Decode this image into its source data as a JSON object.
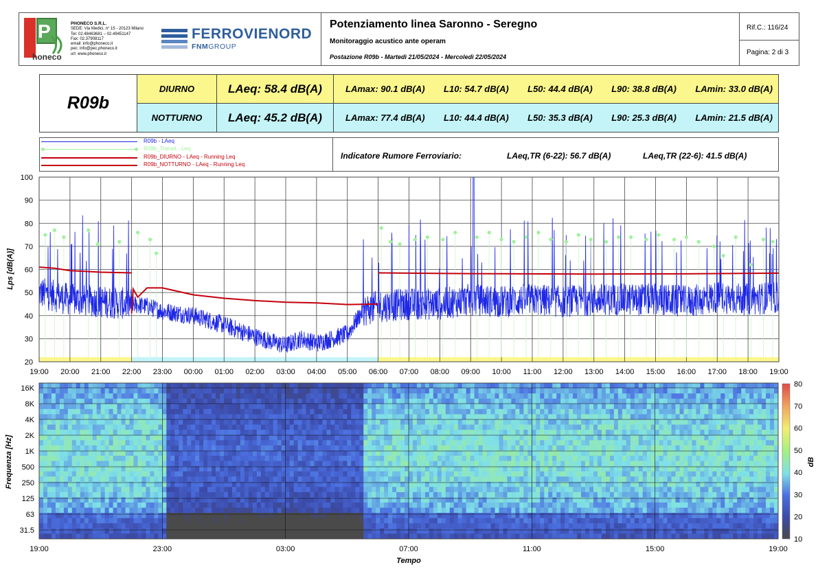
{
  "header": {
    "company": {
      "name": "PHONECO S.R.L.",
      "lines": [
        "SEDE: Via Medici, n° 15 - 20123 Milano",
        "Tel: 02.48463681 – 02.49451147",
        "Fax: 02.37908117",
        "email: info@phoneco.it",
        "pec: info@pec.phoneco.it",
        "url: www.phoneco.it"
      ],
      "logo_text": "honeco",
      "logo_letter": "P"
    },
    "ferrovienord": {
      "brand": "FERROVIENORD",
      "group_prefix": "FNM",
      "group_suffix": "GROUP"
    },
    "title": "Potenziamento linea Saronno - Seregno",
    "subtitle": "Monitoraggio acustico ante operam",
    "period": "Postazione R09b - Martedì 21/05/2024 - Mercoledì 22/05/2024",
    "ref": "Rif.C.: 116/24",
    "page": "Pagina: 2 di 3"
  },
  "summary": {
    "station": "R09b",
    "rows": [
      {
        "period": "DIURNO",
        "laeq": "LAeq: 58.4 dB(A)",
        "lamax": "LAmax: 90.1 dB(A)",
        "l10": "L10: 54.7 dB(A)",
        "l50": "L50: 44.4 dB(A)",
        "l90": "L90: 38.8 dB(A)",
        "lamin": "LAmin: 33.0 dB(A)",
        "color": "#fbf78c"
      },
      {
        "period": "NOTTURNO",
        "laeq": "LAeq: 45.2 dB(A)",
        "lamax": "LAmax: 77.4 dB(A)",
        "l10": "L10: 44.4 dB(A)",
        "l50": "L50: 35.3 dB(A)",
        "l90": "L90: 25.3 dB(A)",
        "lamin": "LAmin: 21.5 dB(A)",
        "color": "#c4f4f7"
      }
    ]
  },
  "legend": [
    {
      "label": "R09b - LAeq",
      "color": "#1d27e6"
    },
    {
      "label": "R09b_Transit - Leq",
      "color": "#9ff29a"
    },
    {
      "label": "R09b_DIURNO - LAeq - Running Leq",
      "color": "#c4000c"
    },
    {
      "label": "R09b_NOTTURNO - LAeq - Running Leq",
      "color": "#c4000c"
    }
  ],
  "indicator": {
    "label": "Indicatore Rumore Ferroviario:",
    "day": "LAeq,TR (6-22): 56.7 dB(A)",
    "night": "LAeq,TR (22-6): 41.5 dB(A)"
  },
  "chart_data": [
    {
      "type": "line",
      "ylabel": "Lps [dB(A)]",
      "ylim": [
        20,
        100
      ],
      "yticks": [
        "20",
        "30",
        "40",
        "50",
        "60",
        "70",
        "80",
        "90",
        "100"
      ],
      "xticks": [
        "19:00",
        "20:00",
        "21:00",
        "22:00",
        "23:00",
        "00:00",
        "01:00",
        "02:00",
        "03:00",
        "04:00",
        "05:00",
        "06:00",
        "07:00",
        "08:00",
        "09:00",
        "10:00",
        "11:00",
        "12:00",
        "13:00",
        "14:00",
        "15:00",
        "16:00",
        "17:00",
        "18:00",
        "19:00"
      ],
      "grid": true,
      "period_bands": [
        {
          "name": "DIURNO",
          "from_h": 0,
          "to_h": 3,
          "color": "#fbf78c"
        },
        {
          "name": "NOTTURNO",
          "from_h": 3,
          "to_h": 11,
          "color": "#c4f4f7"
        },
        {
          "name": "DIURNO",
          "from_h": 11,
          "to_h": 24,
          "color": "#fbf78c"
        }
      ],
      "laeq_baseline": [
        [
          0,
          50
        ],
        [
          1,
          47
        ],
        [
          2,
          46
        ],
        [
          3,
          45
        ],
        [
          3.5,
          44
        ],
        [
          4,
          42
        ],
        [
          5,
          40
        ],
        [
          6,
          36
        ],
        [
          7,
          31
        ],
        [
          7.7,
          28
        ],
        [
          8,
          27
        ],
        [
          8.5,
          30
        ],
        [
          9,
          28
        ],
        [
          10,
          32
        ],
        [
          10.5,
          42
        ],
        [
          11,
          44
        ],
        [
          12,
          45
        ],
        [
          13,
          45
        ],
        [
          14,
          47
        ],
        [
          15,
          46
        ],
        [
          16,
          47
        ],
        [
          17,
          46
        ],
        [
          18,
          47
        ],
        [
          20,
          47
        ],
        [
          21,
          46
        ],
        [
          22,
          48
        ],
        [
          23,
          47
        ],
        [
          24,
          48
        ]
      ],
      "running_leq_diurno": [
        [
          0,
          61
        ],
        [
          0.5,
          60.5
        ],
        [
          1,
          59.5
        ],
        [
          2,
          58.8
        ],
        [
          3,
          58.5
        ]
      ],
      "running_leq_notturno": [
        [
          3,
          41
        ],
        [
          3.05,
          51.5
        ],
        [
          3.2,
          48
        ],
        [
          3.5,
          52
        ],
        [
          4,
          52
        ],
        [
          5,
          49
        ],
        [
          6,
          47.5
        ],
        [
          7,
          46.5
        ],
        [
          8,
          45.8
        ],
        [
          9,
          45.5
        ],
        [
          10,
          44.8
        ],
        [
          11,
          45
        ]
      ],
      "running_leq_diurno_2": [
        [
          11,
          58.5
        ],
        [
          14,
          58.2
        ],
        [
          18,
          58
        ],
        [
          21,
          58.1
        ],
        [
          24,
          58.4
        ]
      ],
      "transit_leq": [
        [
          0.2,
          75
        ],
        [
          0.5,
          77
        ],
        [
          0.8,
          74
        ],
        [
          1.6,
          77
        ],
        [
          1.9,
          71
        ],
        [
          2.6,
          72
        ],
        [
          3.2,
          76
        ],
        [
          3.6,
          73
        ],
        [
          3.8,
          67
        ],
        [
          11.1,
          78
        ],
        [
          11.4,
          72
        ],
        [
          11.7,
          71
        ],
        [
          12.2,
          73
        ],
        [
          12.6,
          74
        ],
        [
          13.1,
          73
        ],
        [
          13.5,
          76
        ],
        [
          14.2,
          74
        ],
        [
          14.6,
          76
        ],
        [
          15.0,
          73
        ],
        [
          15.4,
          72
        ],
        [
          15.8,
          74
        ],
        [
          16.2,
          76
        ],
        [
          16.6,
          73
        ],
        [
          17.1,
          72
        ],
        [
          17.5,
          75
        ],
        [
          17.9,
          73
        ],
        [
          18.4,
          72
        ],
        [
          18.8,
          74
        ],
        [
          19.2,
          74
        ],
        [
          19.7,
          73
        ],
        [
          20.1,
          75
        ],
        [
          20.6,
          73
        ],
        [
          21.0,
          74
        ],
        [
          21.4,
          72
        ],
        [
          21.9,
          70
        ],
        [
          22.2,
          66
        ],
        [
          22.6,
          74
        ],
        [
          23.1,
          62
        ],
        [
          23.5,
          73
        ],
        [
          23.8,
          72
        ]
      ]
    },
    {
      "type": "heatmap",
      "ylabel": "Frequenza [Hz]",
      "xlabel": "Tempo",
      "yticks": [
        "16K",
        "8K",
        "4K",
        "2K",
        "1K",
        "500",
        "250",
        "125",
        "63",
        "31.5"
      ],
      "xticks": [
        "19:00",
        "23:00",
        "03:00",
        "07:00",
        "11:00",
        "15:00",
        "19:00"
      ],
      "colorbar": {
        "label": "dB",
        "ticks": [
          "10",
          "20",
          "30",
          "40",
          "50",
          "60",
          "70",
          "80"
        ],
        "range": [
          10,
          80
        ]
      }
    }
  ]
}
